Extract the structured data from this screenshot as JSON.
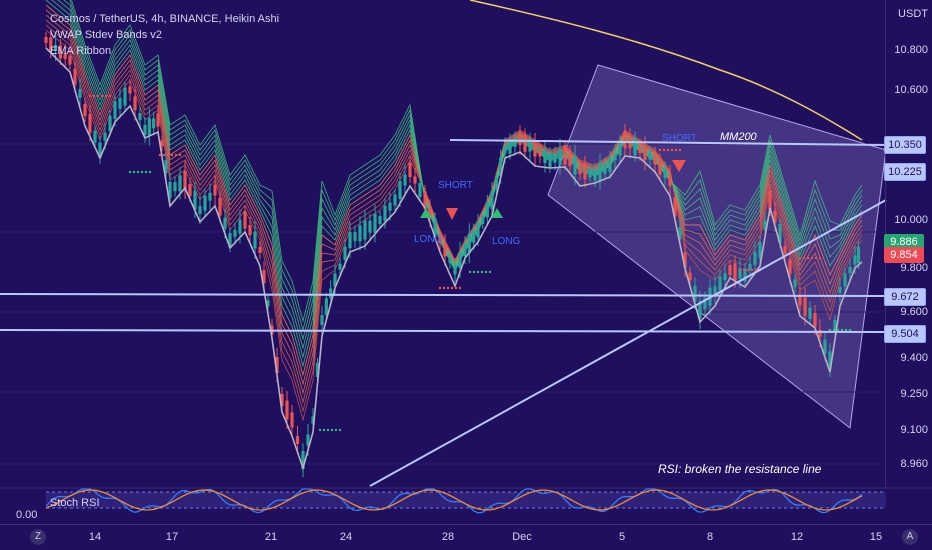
{
  "legend": {
    "symbol": "Cosmos / TetherUS, 4h, BINANCE, Heikin Ashi",
    "indicator1": "VWAP Stdev Bands v2",
    "indicator2": "EMA Ribbon"
  },
  "price_scale": {
    "currency": "USDT",
    "labels": [
      "10.800",
      "10.600",
      "10.000",
      "9.800",
      "9.600",
      "9.400",
      "9.250",
      "9.100",
      "8.960"
    ]
  },
  "price_tags": {
    "level_high": "10.350",
    "level_high_sub": "10.225",
    "current_green": "9.886",
    "current_red": "9.854",
    "level_mid": "9.672",
    "level_low": "9.504"
  },
  "time_axis": [
    "14",
    "17",
    "21",
    "24",
    "28",
    "Dec",
    "5",
    "8",
    "12",
    "15"
  ],
  "annotations": {
    "mm200": "MM200",
    "rsi_note": "RSI: broken the resistance line",
    "short1": "SHORT",
    "short2": "SHORT",
    "long1": "LONG",
    "long2": "LONG"
  },
  "stoch": {
    "label": "Stoch RSI",
    "value": "0.00"
  },
  "corner_buttons": {
    "zoom": "Z",
    "auto": "A"
  },
  "colors": {
    "background": "#1f0f5e",
    "bull": "#26a69a",
    "bear": "#ef5350",
    "hline": "#b8c8ff",
    "ma200": "#f5d060",
    "channel": "rgba(170,150,230,0.28)"
  }
}
